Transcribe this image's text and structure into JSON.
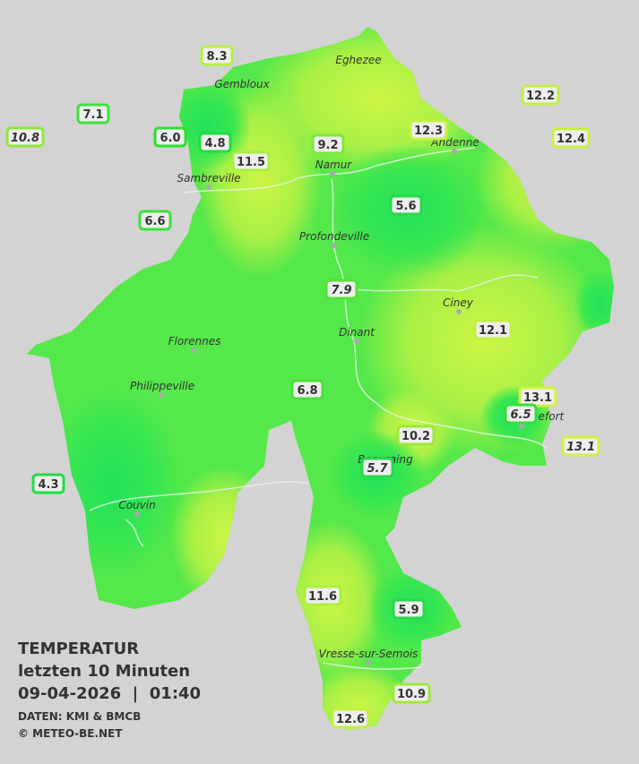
{
  "legend": {
    "title": "TEMPERATUR",
    "subtitle": "letzten 10 Minuten",
    "timestamp": "09-04-2026  |  01:40",
    "source": "DATEN: KMI & BMCB",
    "copyright": "© METEO-BE.NET"
  },
  "cities": [
    {
      "name": "Gembloux"
    },
    {
      "name": "Eghezee"
    },
    {
      "name": "Andenne"
    },
    {
      "name": "Namur"
    },
    {
      "name": "Sambreville"
    },
    {
      "name": "Profondeville"
    },
    {
      "name": "Ciney"
    },
    {
      "name": "Dinant"
    },
    {
      "name": "Florennes"
    },
    {
      "name": "Philippeville"
    },
    {
      "name": "Rochefort"
    },
    {
      "name": "Beauraing"
    },
    {
      "name": "Couvin"
    },
    {
      "name": "Vresse-sur-Semois"
    }
  ],
  "stations": [
    {
      "value": "8.3",
      "color": "#b5f040",
      "italic": false
    },
    {
      "value": "7.1",
      "color": "#3de03d",
      "italic": false
    },
    {
      "value": "10.8",
      "color": "#8fe83a",
      "italic": true
    },
    {
      "value": "6.0",
      "color": "#2de02d",
      "italic": false
    },
    {
      "value": "4.8",
      "color": "#22dd40",
      "italic": false
    },
    {
      "value": "11.5",
      "color": "#a8f040",
      "italic": false
    },
    {
      "value": "9.2",
      "color": "#7ee83a",
      "italic": false
    },
    {
      "value": "12.3",
      "color": "#c8f040",
      "italic": false
    },
    {
      "value": "12.2",
      "color": "#c2f040",
      "italic": false
    },
    {
      "value": "12.4",
      "color": "#c8f040",
      "italic": false
    },
    {
      "value": "6.6",
      "color": "#3de03d",
      "italic": false
    },
    {
      "value": "5.6",
      "color": "#2ad84a",
      "italic": false
    },
    {
      "value": "7.9",
      "color": "#55e03a",
      "italic": true
    },
    {
      "value": "12.1",
      "color": "#c2f040",
      "italic": false
    },
    {
      "value": "6.8",
      "color": "#48e03a",
      "italic": false
    },
    {
      "value": "13.1",
      "color": "#d5f040",
      "italic": false
    },
    {
      "value": "6.5",
      "color": "#38dd40",
      "italic": true
    },
    {
      "value": "13.1",
      "color": "#d5f040",
      "italic": true
    },
    {
      "value": "10.2",
      "color": "#9ee83a",
      "italic": false
    },
    {
      "value": "5.7",
      "color": "#2ad84a",
      "italic": true
    },
    {
      "value": "4.3",
      "color": "#22dd40",
      "italic": false
    },
    {
      "value": "11.6",
      "color": "#aaf040",
      "italic": false
    },
    {
      "value": "5.9",
      "color": "#2ad84a",
      "italic": false
    },
    {
      "value": "10.9",
      "color": "#a0e83a",
      "italic": false
    },
    {
      "value": "12.6",
      "color": "#bff040",
      "italic": false
    }
  ]
}
